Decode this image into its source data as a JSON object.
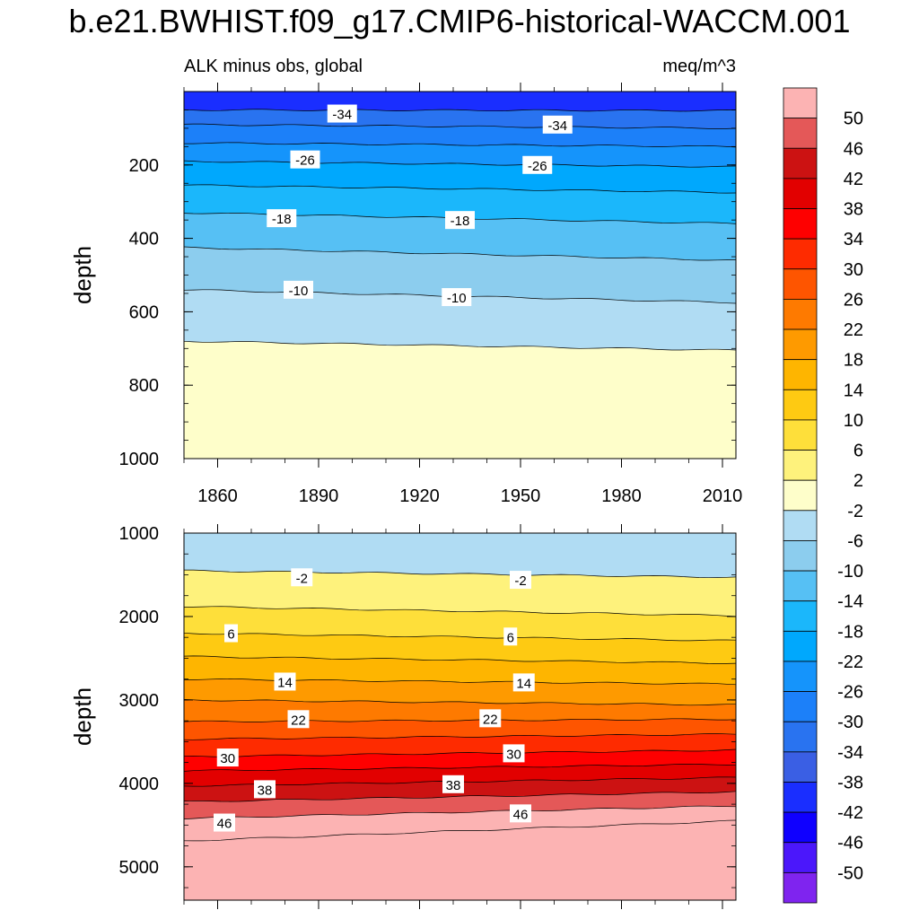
{
  "title": "b.e21.BWHIST.f09_g17.CMIP6-historical-WACCM.001",
  "subtitle_left": "ALK minus obs, global",
  "subtitle_right": "meq/m^3",
  "chart_data": [
    {
      "type": "heatmap",
      "panel": "upper",
      "ylabel": "depth",
      "xlim": [
        1850,
        2014
      ],
      "ylim": [
        1000,
        0
      ],
      "y_reversed": true,
      "x_ticks": [
        1860,
        1890,
        1920,
        1950,
        1980,
        2010
      ],
      "y_ticks": [
        200,
        400,
        600,
        800,
        1000
      ],
      "contours": [
        {
          "level": -38,
          "depth_start": 50,
          "depth_end": 52
        },
        {
          "level": -34,
          "depth_start": 90,
          "depth_end": 100
        },
        {
          "level": -30,
          "depth_start": 140,
          "depth_end": 150
        },
        {
          "level": -26,
          "depth_start": 190,
          "depth_end": 205
        },
        {
          "level": -22,
          "depth_start": 255,
          "depth_end": 275
        },
        {
          "level": -18,
          "depth_start": 330,
          "depth_end": 360
        },
        {
          "level": -14,
          "depth_start": 425,
          "depth_end": 460
        },
        {
          "level": -10,
          "depth_start": 540,
          "depth_end": 575
        },
        {
          "level": -6,
          "depth_start": 680,
          "depth_end": 705
        }
      ],
      "contour_labels": [
        {
          "text": "-34",
          "x": 1897,
          "depth": 60
        },
        {
          "text": "-34",
          "x": 1961,
          "depth": 90
        },
        {
          "text": "-26",
          "x": 1886,
          "depth": 185
        },
        {
          "text": "-26",
          "x": 1955,
          "depth": 200
        },
        {
          "text": "-18",
          "x": 1879,
          "depth": 345
        },
        {
          "text": "-18",
          "x": 1932,
          "depth": 350
        },
        {
          "text": "-10",
          "x": 1884,
          "depth": 540
        },
        {
          "text": "-10",
          "x": 1931,
          "depth": 560
        }
      ]
    },
    {
      "type": "heatmap",
      "panel": "lower",
      "ylabel": "depth",
      "xlim": [
        1850,
        2014
      ],
      "ylim": [
        5400,
        1000
      ],
      "y_reversed": true,
      "y_ticks": [
        1000,
        2000,
        3000,
        4000,
        5000
      ],
      "contours": [
        {
          "level": -2,
          "depth_start": 1450,
          "depth_end": 1530
        },
        {
          "level": 2,
          "depth_start": 1880,
          "depth_end": 1990
        },
        {
          "level": 6,
          "depth_start": 2200,
          "depth_end": 2290
        },
        {
          "level": 10,
          "depth_start": 2480,
          "depth_end": 2560
        },
        {
          "level": 14,
          "depth_start": 2750,
          "depth_end": 2810
        },
        {
          "level": 18,
          "depth_start": 3000,
          "depth_end": 3060
        },
        {
          "level": 22,
          "depth_start": 3260,
          "depth_end": 3230
        },
        {
          "level": 26,
          "depth_start": 3470,
          "depth_end": 3410
        },
        {
          "level": 30,
          "depth_start": 3680,
          "depth_end": 3600
        },
        {
          "level": 34,
          "depth_start": 3850,
          "depth_end": 3770
        },
        {
          "level": 38,
          "depth_start": 4030,
          "depth_end": 3930
        },
        {
          "level": 42,
          "depth_start": 4220,
          "depth_end": 4100
        },
        {
          "level": 46,
          "depth_start": 4420,
          "depth_end": 4270
        },
        {
          "level": 50,
          "depth_start": 4690,
          "depth_end": 4450
        }
      ],
      "contour_labels": [
        {
          "text": "-2",
          "x": 1885,
          "depth": 1530
        },
        {
          "text": "-2",
          "x": 1950,
          "depth": 1560
        },
        {
          "text": "6",
          "x": 1864,
          "depth": 2200
        },
        {
          "text": "6",
          "x": 1947,
          "depth": 2240
        },
        {
          "text": "14",
          "x": 1880,
          "depth": 2780
        },
        {
          "text": "14",
          "x": 1951,
          "depth": 2790
        },
        {
          "text": "22",
          "x": 1884,
          "depth": 3230
        },
        {
          "text": "22",
          "x": 1941,
          "depth": 3220
        },
        {
          "text": "30",
          "x": 1863,
          "depth": 3690
        },
        {
          "text": "30",
          "x": 1948,
          "depth": 3640
        },
        {
          "text": "38",
          "x": 1874,
          "depth": 4070
        },
        {
          "text": "38",
          "x": 1930,
          "depth": 4010
        },
        {
          "text": "46",
          "x": 1862,
          "depth": 4470
        },
        {
          "text": "46",
          "x": 1950,
          "depth": 4360
        }
      ]
    }
  ],
  "colorbar": {
    "labels": [
      "50",
      "46",
      "42",
      "38",
      "34",
      "30",
      "26",
      "22",
      "18",
      "14",
      "10",
      "6",
      "2",
      "-2",
      "-6",
      "-10",
      "-14",
      "-18",
      "-22",
      "-26",
      "-30",
      "-34",
      "-38",
      "-42",
      "-46",
      "-50"
    ],
    "colors_top_to_bottom": [
      "#fcb3b3",
      "#e45858",
      "#cc1212",
      "#e20000",
      "#fe0000",
      "#fe2b00",
      "#fe5500",
      "#fe7a00",
      "#fe9a00",
      "#feb500",
      "#feca12",
      "#fedf3a",
      "#fef27c",
      "#fefeca",
      "#b0dcf3",
      "#8ccdee",
      "#56c0f4",
      "#1bb7fb",
      "#00a8fd",
      "#1594fb",
      "#1c80f9",
      "#2973f0",
      "#3a5fe4",
      "#1a2eff",
      "#0f00ff",
      "#4b17fb",
      "#7f24ef"
    ]
  },
  "colors": {
    "bands": {
      "-42": "#1a2eff",
      "-38": "#3a5fe4",
      "-34": "#2973f0",
      "-30": "#1c80f9",
      "-26": "#1594fb",
      "-22": "#00a8fd",
      "-18": "#1bb7fb",
      "-14": "#56c0f4",
      "-10": "#8ccdee",
      "-6": "#b0dcf3",
      "-2": "#fefeca",
      "2": "#fef27c",
      "6": "#fedf3a",
      "10": "#feca12",
      "14": "#feb500",
      "18": "#fe9a00",
      "22": "#fe7a00",
      "26": "#fe5500",
      "30": "#fe2b00",
      "34": "#fe0000",
      "38": "#e20000",
      "42": "#cc1212",
      "46": "#e45858",
      "50": "#fcb3b3"
    }
  }
}
